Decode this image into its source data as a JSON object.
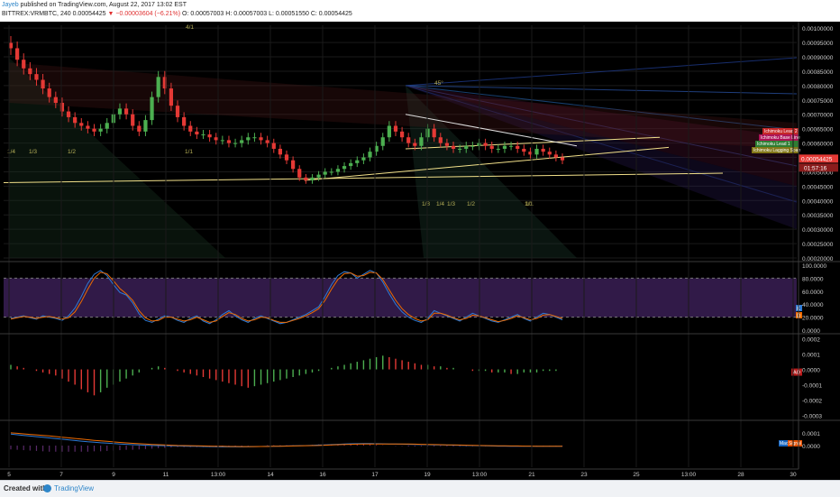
{
  "header": {
    "author": "Jayeb",
    "published": "published on TradingView.com, August 22, 2017 13:02 EST",
    "symbol": "BITTREX:VRMBTC, 240",
    "last": "0.00054425",
    "change": "−0.00003604 (−6.21%)",
    "ohlc": "O: 0.00057003 H: 0.00057003 L: 0.00051550 C: 0.00054425"
  },
  "footer": {
    "created": "Created with",
    "brand": "TradingView"
  },
  "colors": {
    "background": "#000000",
    "grid": "#1a1a1a",
    "up": "#4caf50",
    "down": "#e53935",
    "axis_text": "#cccccc",
    "stoch_k": "#2e7bd6",
    "stoch_d": "#ef6c00",
    "trendline": "#f2e08a"
  },
  "chart_data": [
    {
      "type": "candlestick",
      "name": "price",
      "ylim": [
        0.0002,
        0.00101
      ],
      "y_ticks": [
        "0.00100000",
        "0.00095000",
        "0.00090000",
        "0.00085000",
        "0.00080000",
        "0.00075000",
        "0.00070000",
        "0.00065000",
        "0.00060000",
        "0.00055000",
        "0.00050000",
        "0.00045000",
        "0.00040000",
        "0.00035000",
        "0.00030000",
        "0.00025000",
        "0.00020000"
      ],
      "x_ticks": [
        "5",
        "7",
        "9",
        "11",
        "13:00",
        "14",
        "16",
        "17",
        "19",
        "13:00",
        "21",
        "23",
        "25",
        "13:00",
        "28",
        "30"
      ],
      "fan_labels": [
        "1/4",
        "1/3",
        "1/2",
        "1/1",
        "1/1",
        "45°",
        "1/8",
        "1/4",
        "1/3",
        "1/2",
        "1/1",
        "4/1"
      ],
      "badges": [
        {
          "label": "Ichimoku Lead 2",
          "color": "#c62828"
        },
        {
          "label": "Ichimoku Base Line",
          "color": "#ad1457"
        },
        {
          "label": "Ichimoku Lead 1",
          "color": "#2e7d32"
        },
        {
          "label": "Ichimoku Lagging Span",
          "color": "#827717"
        }
      ],
      "price_label": "0.00054425",
      "timer_label": "01:57:16",
      "close_series": [
        0.00093,
        0.00089,
        0.00086,
        0.00084,
        0.00082,
        0.00079,
        0.00076,
        0.00074,
        0.00071,
        0.00069,
        0.00067,
        0.00066,
        0.00065,
        0.00064,
        0.00065,
        0.00067,
        0.0007,
        0.00072,
        0.0007,
        0.00066,
        0.00064,
        0.00068,
        0.00076,
        0.00083,
        0.00079,
        0.00073,
        0.00069,
        0.00066,
        0.00064,
        0.00063,
        0.00063,
        0.00062,
        0.00061,
        0.00061,
        0.0006,
        0.0006,
        0.00061,
        0.00062,
        0.00062,
        0.00061,
        0.0006,
        0.00058,
        0.00056,
        0.00054,
        0.00051,
        0.00048,
        0.00047,
        0.00048,
        0.00049,
        0.0005,
        0.0005,
        0.00051,
        0.00052,
        0.00053,
        0.00054,
        0.00055,
        0.00057,
        0.00059,
        0.00062,
        0.00066,
        0.00064,
        0.00062,
        0.0006,
        0.00059,
        0.00062,
        0.00065,
        0.00062,
        0.0006,
        0.00059,
        0.00058,
        0.00058,
        0.00059,
        0.00059,
        0.0006,
        0.00059,
        0.00058,
        0.00058,
        0.00059,
        0.00059,
        0.00058,
        0.00057,
        0.00056,
        0.00058,
        0.00057,
        0.00056,
        0.00055,
        0.00054
      ]
    },
    {
      "type": "line",
      "name": "stochastic",
      "ylim": [
        0,
        100
      ],
      "y_ticks": [
        "100.0000",
        "80.0000",
        "60.0000",
        "40.0000",
        "20.0000",
        "0.0000"
      ],
      "band": [
        20,
        80
      ],
      "series": [
        {
          "name": "K",
          "values": [
            18,
            20,
            22,
            19,
            17,
            22,
            20,
            18,
            15,
            22,
            34,
            52,
            72,
            86,
            92,
            84,
            70,
            58,
            54,
            42,
            25,
            15,
            12,
            17,
            22,
            20,
            15,
            12,
            18,
            22,
            14,
            10,
            16,
            24,
            30,
            22,
            16,
            12,
            18,
            22,
            18,
            14,
            10,
            12,
            16,
            20,
            24,
            30,
            36,
            52,
            70,
            84,
            90,
            88,
            80,
            86,
            92,
            88,
            74,
            56,
            40,
            28,
            20,
            15,
            12,
            18,
            30,
            26,
            22,
            18,
            14,
            20,
            26,
            22,
            18,
            14,
            12,
            16,
            20,
            24,
            18,
            14,
            20,
            26,
            24,
            20,
            16
          ]
        },
        {
          "name": "D",
          "values": [
            17,
            19,
            21,
            20,
            18,
            20,
            21,
            19,
            17,
            19,
            28,
            44,
            63,
            80,
            89,
            87,
            76,
            64,
            56,
            46,
            30,
            19,
            14,
            15,
            20,
            20,
            17,
            14,
            16,
            20,
            16,
            12,
            14,
            21,
            27,
            24,
            18,
            14,
            16,
            20,
            19,
            15,
            12,
            12,
            15,
            18,
            22,
            27,
            33,
            46,
            63,
            78,
            87,
            88,
            83,
            84,
            89,
            88,
            78,
            62,
            46,
            33,
            24,
            18,
            14,
            16,
            26,
            26,
            23,
            19,
            16,
            18,
            23,
            22,
            19,
            16,
            13,
            15,
            18,
            22,
            19,
            16,
            18,
            23,
            24,
            21,
            18
          ]
        }
      ],
      "letter_k": "K",
      "letter_d": "D"
    },
    {
      "type": "bar",
      "name": "awesome-oscillator",
      "ylim": [
        -0.00031,
        0.00021
      ],
      "y_ticks": [
        "0.0002",
        "0.0001",
        "0.0000",
        "-0.0001",
        "-0.0002",
        "-0.0003"
      ],
      "values": [
        3e-05,
        2e-05,
        1e-05,
        0.0,
        -1e-05,
        -2e-05,
        -3e-05,
        -4e-05,
        -6e-05,
        -8e-05,
        -0.0001,
        -0.00013,
        -0.00015,
        -0.00017,
        -0.00015,
        -0.00012,
        -0.0001,
        -8e-05,
        -6e-05,
        -4e-05,
        -2e-05,
        0.0,
        1e-05,
        2e-05,
        1e-05,
        0.0,
        -1e-05,
        -2e-05,
        -3e-05,
        -4e-05,
        -5e-05,
        -6e-05,
        -7e-05,
        -8e-05,
        -9e-05,
        -0.0001,
        -0.00011,
        -0.00012,
        -0.00011,
        -0.0001,
        -9e-05,
        -8e-05,
        -7e-05,
        -6e-05,
        -5e-05,
        -4e-05,
        -3e-05,
        -2e-05,
        -1e-05,
        0.0,
        1e-05,
        2e-05,
        3e-05,
        4e-05,
        5e-05,
        6e-05,
        7e-05,
        8e-05,
        9e-05,
        8e-05,
        7e-05,
        6e-05,
        5e-05,
        4e-05,
        3e-05,
        3e-05,
        2e-05,
        2e-05,
        1e-05,
        1e-05,
        0.0,
        0.0,
        -1e-05,
        -1e-05,
        -1e-05,
        -2e-05,
        -2e-05,
        -2e-05,
        -3e-05,
        -3e-05,
        -2e-05,
        -2e-05,
        -2e-05,
        -1e-05,
        -1e-05,
        -1e-05,
        0.0
      ],
      "badge": "AO"
    },
    {
      "type": "line",
      "name": "macd",
      "ylim": [
        -0.00017,
        0.00017
      ],
      "y_ticks": [
        "0.0001",
        "0.0000"
      ],
      "series": [
        {
          "name": "MACD",
          "values": [
            9e-05,
            8.5e-05,
            8e-05,
            7.5e-05,
            7e-05,
            6.5e-05,
            6e-05,
            5.5e-05,
            5e-05,
            4.5e-05,
            4e-05,
            3.5e-05,
            3e-05,
            2.6e-05,
            2.2e-05,
            1.9e-05,
            1.6e-05,
            1.3e-05,
            1e-05,
            7e-06,
            5e-06,
            3e-06,
            1e-06,
            0.0,
            -1e-06,
            -2e-06,
            -3e-06,
            -4e-06,
            -5e-06,
            -6e-06,
            -7e-06,
            -8e-06,
            -9e-06,
            -1e-05,
            -1e-05,
            -1e-05,
            -1e-05,
            -9e-06,
            -8e-06,
            -7e-06,
            -6e-06,
            -5e-06,
            -4e-06,
            -3e-06,
            -2e-06,
            -1e-06,
            0.0,
            2e-06,
            4e-06,
            6e-06,
            8e-06,
            1e-05,
            1.2e-05,
            1.4e-05,
            1.5e-05,
            1.6e-05,
            1.6e-05,
            1.5e-05,
            1.4e-05,
            1.3e-05,
            1.2e-05,
            1.1e-05,
            1e-05,
            9e-06,
            8e-06,
            7e-06,
            6e-06,
            5e-06,
            4e-06,
            3e-06,
            2e-06,
            1e-06,
            0.0,
            -1e-06,
            -2e-06,
            -3e-06,
            -4e-06,
            -4e-06,
            -5e-06,
            -5e-06,
            -5e-06,
            -6e-06,
            -6e-06,
            -6e-06,
            -6e-06,
            -6e-06,
            -6e-06
          ]
        },
        {
          "name": "Signal",
          "values": [
            0.0001,
            9.6e-05,
            9.2e-05,
            8.8e-05,
            8.4e-05,
            8e-05,
            7.6e-05,
            7.1e-05,
            6.6e-05,
            6.1e-05,
            5.6e-05,
            5.1e-05,
            4.6e-05,
            4.1e-05,
            3.7e-05,
            3.3e-05,
            2.9e-05,
            2.5e-05,
            2.1e-05,
            1.8e-05,
            1.5e-05,
            1.2e-05,
            9e-06,
            7e-06,
            5e-06,
            3e-06,
            1e-06,
            0.0,
            -1e-06,
            -2e-06,
            -3e-06,
            -4e-06,
            -5e-06,
            -6e-06,
            -7e-06,
            -7e-06,
            -8e-06,
            -8e-06,
            -8e-06,
            -7e-06,
            -7e-06,
            -6e-06,
            -5e-06,
            -4e-06,
            -3e-06,
            -2e-06,
            -1e-06,
            0.0,
            1e-06,
            3e-06,
            5e-06,
            7e-06,
            9e-06,
            1e-05,
            1.1e-05,
            1.2e-05,
            1.3e-05,
            1.3e-05,
            1.3e-05,
            1.3e-05,
            1.3e-05,
            1.2e-05,
            1.2e-05,
            1.1e-05,
            1e-05,
            9e-06,
            8e-06,
            7e-06,
            6e-06,
            5e-06,
            4e-06,
            3e-06,
            2e-06,
            1e-06,
            0.0,
            -1e-06,
            -2e-06,
            -2e-06,
            -3e-06,
            -3e-06,
            -4e-06,
            -4e-06,
            -5e-06,
            -5e-06,
            -5e-06,
            -5e-06,
            -5e-06
          ]
        }
      ],
      "badge_macd": "Mac",
      "badge_signal": "Signal"
    }
  ]
}
